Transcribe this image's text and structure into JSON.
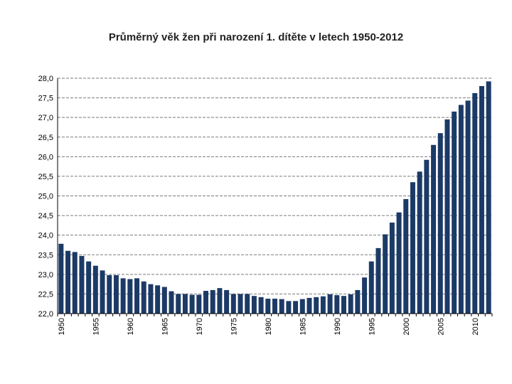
{
  "chart_data": {
    "type": "bar",
    "title": "Průměrný věk žen při narození 1. dítěte v letech 1950-2012",
    "xlabel": "",
    "ylabel": "",
    "ylim": [
      22.0,
      28.0
    ],
    "yticks": [
      "22,0",
      "22,5",
      "23,0",
      "23,5",
      "24,0",
      "24,5",
      "25,0",
      "25,5",
      "26,0",
      "26,5",
      "27,0",
      "27,5",
      "28,0"
    ],
    "xtick_labels": [
      "1950",
      "1955",
      "1960",
      "1965",
      "1970",
      "1975",
      "1980",
      "1985",
      "1990",
      "1995",
      "2000",
      "2005",
      "2010"
    ],
    "grid": "horizontal dashed",
    "bar_color": "#1c3a66",
    "categories": [
      1950,
      1951,
      1952,
      1953,
      1954,
      1955,
      1956,
      1957,
      1958,
      1959,
      1960,
      1961,
      1962,
      1963,
      1964,
      1965,
      1966,
      1967,
      1968,
      1969,
      1970,
      1971,
      1972,
      1973,
      1974,
      1975,
      1976,
      1977,
      1978,
      1979,
      1980,
      1981,
      1982,
      1983,
      1984,
      1985,
      1986,
      1987,
      1988,
      1989,
      1990,
      1991,
      1992,
      1993,
      1994,
      1995,
      1996,
      1997,
      1998,
      1999,
      2000,
      2001,
      2002,
      2003,
      2004,
      2005,
      2006,
      2007,
      2008,
      2009,
      2010,
      2011,
      2012
    ],
    "values": [
      23.78,
      23.6,
      23.57,
      23.47,
      23.33,
      23.22,
      23.1,
      22.98,
      22.98,
      22.9,
      22.88,
      22.9,
      22.82,
      22.75,
      22.72,
      22.68,
      22.57,
      22.5,
      22.5,
      22.48,
      22.48,
      22.58,
      22.6,
      22.65,
      22.6,
      22.5,
      22.5,
      22.5,
      22.45,
      22.42,
      22.38,
      22.38,
      22.37,
      22.32,
      22.32,
      22.37,
      22.4,
      22.42,
      22.44,
      22.49,
      22.47,
      22.45,
      22.49,
      22.6,
      22.92,
      23.33,
      23.67,
      24.02,
      24.32,
      24.58,
      24.92,
      25.35,
      25.62,
      25.92,
      26.3,
      26.6,
      26.95,
      27.15,
      27.32,
      27.43,
      27.62,
      27.8,
      27.92
    ]
  }
}
